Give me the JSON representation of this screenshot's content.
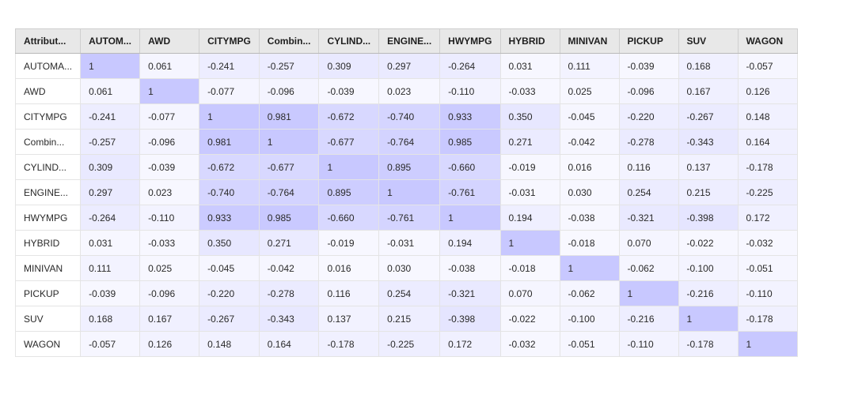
{
  "grid": {
    "corner_header": "Attribut...",
    "column_headers": [
      "AUTOM...",
      "AWD",
      "CITYMPG",
      "Combin...",
      "CYLIND...",
      "ENGINE...",
      "HWYMPG",
      "HYBRID",
      "MINIVAN",
      "PICKUP",
      "SUV",
      "WAGON"
    ],
    "row_labels": [
      "AUTOMA...",
      "AWD",
      "CITYMPG",
      "Combin...",
      "CYLIND...",
      "ENGINE...",
      "HWYMPG",
      "HYBRID",
      "MINIVAN",
      "PICKUP",
      "SUV",
      "WAGON"
    ],
    "cells": [
      [
        "1",
        "0.061",
        "-0.241",
        "-0.257",
        "0.309",
        "0.297",
        "-0.264",
        "0.031",
        "0.111",
        "-0.039",
        "0.168",
        "-0.057"
      ],
      [
        "0.061",
        "1",
        "-0.077",
        "-0.096",
        "-0.039",
        "0.023",
        "-0.110",
        "-0.033",
        "0.025",
        "-0.096",
        "0.167",
        "0.126"
      ],
      [
        "-0.241",
        "-0.077",
        "1",
        "0.981",
        "-0.672",
        "-0.740",
        "0.933",
        "0.350",
        "-0.045",
        "-0.220",
        "-0.267",
        "0.148"
      ],
      [
        "-0.257",
        "-0.096",
        "0.981",
        "1",
        "-0.677",
        "-0.764",
        "0.985",
        "0.271",
        "-0.042",
        "-0.278",
        "-0.343",
        "0.164"
      ],
      [
        "0.309",
        "-0.039",
        "-0.672",
        "-0.677",
        "1",
        "0.895",
        "-0.660",
        "-0.019",
        "0.016",
        "0.116",
        "0.137",
        "-0.178"
      ],
      [
        "0.297",
        "0.023",
        "-0.740",
        "-0.764",
        "0.895",
        "1",
        "-0.761",
        "-0.031",
        "0.030",
        "0.254",
        "0.215",
        "-0.225"
      ],
      [
        "-0.264",
        "-0.110",
        "0.933",
        "0.985",
        "-0.660",
        "-0.761",
        "1",
        "0.194",
        "-0.038",
        "-0.321",
        "-0.398",
        "0.172"
      ],
      [
        "0.031",
        "-0.033",
        "0.350",
        "0.271",
        "-0.019",
        "-0.031",
        "0.194",
        "1",
        "-0.018",
        "0.070",
        "-0.022",
        "-0.032"
      ],
      [
        "0.111",
        "0.025",
        "-0.045",
        "-0.042",
        "0.016",
        "0.030",
        "-0.038",
        "-0.018",
        "1",
        "-0.062",
        "-0.100",
        "-0.051"
      ],
      [
        "-0.039",
        "-0.096",
        "-0.220",
        "-0.278",
        "0.116",
        "0.254",
        "-0.321",
        "0.070",
        "-0.062",
        "1",
        "-0.216",
        "-0.110"
      ],
      [
        "0.168",
        "0.167",
        "-0.267",
        "-0.343",
        "0.137",
        "0.215",
        "-0.398",
        "-0.022",
        "-0.100",
        "-0.216",
        "1",
        "-0.178"
      ],
      [
        "-0.057",
        "0.126",
        "0.148",
        "0.164",
        "-0.178",
        "-0.225",
        "0.172",
        "-0.032",
        "-0.051",
        "-0.110",
        "-0.178",
        "1"
      ]
    ]
  },
  "colors": {
    "header_background": "#e8e8e8",
    "cell_base": "#ffffff",
    "cell_max": "#c8c8ff",
    "border": "#e4e4e4"
  }
}
